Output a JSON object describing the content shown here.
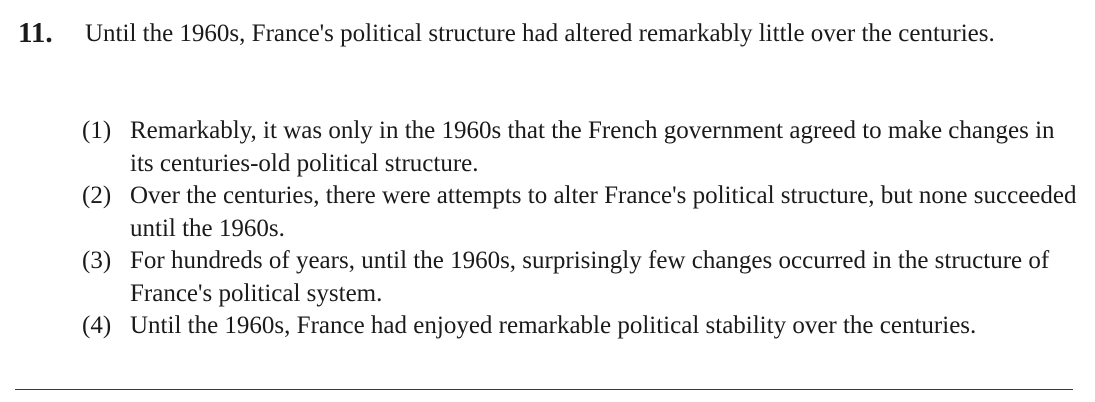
{
  "question": {
    "number": "11.",
    "stem": "Until the 1960s, France's political structure had altered remarkably little over the centuries.",
    "options": [
      {
        "label": "(1)",
        "text": "Remarkably, it was only in the 1960s that the French government agreed to make changes in its centuries-old political structure."
      },
      {
        "label": "(2)",
        "text": "Over the centuries, there were attempts to alter France's political structure, but none succeeded until the 1960s."
      },
      {
        "label": "(3)",
        "text": "For hundreds of years, until the 1960s, surprisingly few changes occurred in the structure of France's political system."
      },
      {
        "label": "(4)",
        "text": "Until the 1960s, France had enjoyed remarkable political stability over the centuries."
      }
    ]
  }
}
